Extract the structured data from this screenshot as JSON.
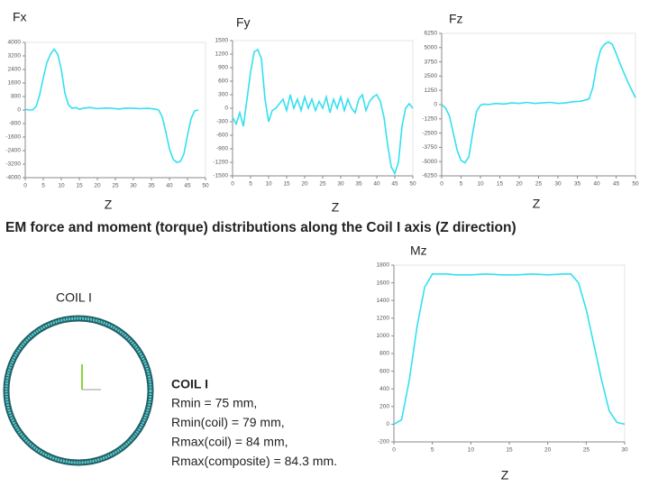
{
  "slide_title": "EM force and moment (torque) distributions along the Coil I axis (Z direction)",
  "coil": {
    "label": "COIL I"
  },
  "info": {
    "title": "COIL I",
    "lines": [
      "Rmin = 75 mm,",
      "Rmin(coil) = 79 mm,",
      "Rmax(coil) = 84 mm,",
      "Rmax(composite) = 84.3 mm."
    ]
  },
  "chart_data": [
    {
      "type": "line",
      "title": "Fx",
      "xlabel": "Z",
      "color": "#33e0f0",
      "x": [
        0,
        1,
        2,
        3,
        4,
        5,
        6,
        7,
        8,
        9,
        10,
        11,
        12,
        13,
        14,
        15,
        16,
        18,
        20,
        22,
        24,
        26,
        28,
        30,
        32,
        34,
        36,
        37,
        38,
        39,
        40,
        41,
        42,
        43,
        44,
        45,
        46,
        47,
        48
      ],
      "values": [
        50,
        0,
        0,
        200,
        900,
        1900,
        2800,
        3300,
        3600,
        3300,
        2400,
        1000,
        300,
        100,
        150,
        50,
        100,
        150,
        80,
        120,
        100,
        60,
        120,
        100,
        80,
        100,
        60,
        0,
        -400,
        -1300,
        -2300,
        -2900,
        -3100,
        -3050,
        -2600,
        -1500,
        -500,
        -50,
        0
      ],
      "xlim": [
        0,
        50
      ],
      "xticks": [
        0,
        5,
        10,
        15,
        20,
        25,
        30,
        35,
        40,
        45,
        50
      ],
      "ylim": [
        -4000,
        4000
      ],
      "yticks": [
        -4000,
        -3200,
        -2400,
        -1600,
        -800,
        0,
        800,
        1600,
        2400,
        3200,
        4000
      ]
    },
    {
      "type": "line",
      "title": "Fy",
      "xlabel": "Z",
      "color": "#33e0f0",
      "x": [
        0,
        1,
        2,
        3,
        4,
        5,
        6,
        7,
        8,
        9,
        10,
        11,
        12,
        13,
        14,
        15,
        16,
        17,
        18,
        19,
        20,
        21,
        22,
        23,
        24,
        25,
        26,
        27,
        28,
        29,
        30,
        31,
        32,
        33,
        34,
        35,
        36,
        37,
        38,
        39,
        40,
        41,
        42,
        43,
        44,
        45,
        46,
        47,
        48,
        49,
        50
      ],
      "values": [
        -200,
        -350,
        -100,
        -400,
        200,
        800,
        1250,
        1300,
        1100,
        200,
        -300,
        -50,
        0,
        100,
        200,
        -50,
        300,
        0,
        200,
        -50,
        250,
        0,
        200,
        -50,
        150,
        0,
        250,
        -100,
        200,
        0,
        250,
        -50,
        200,
        0,
        -100,
        200,
        300,
        -50,
        150,
        250,
        300,
        150,
        -200,
        -800,
        -1300,
        -1450,
        -1200,
        -400,
        0,
        100,
        0
      ],
      "xlim": [
        0,
        50
      ],
      "xticks": [
        0,
        5,
        10,
        15,
        20,
        25,
        30,
        35,
        40,
        45,
        50
      ],
      "ylim": [
        -1500,
        1500
      ],
      "yticks": [
        -1500,
        -1200,
        -900,
        -600,
        -300,
        0,
        300,
        600,
        900,
        1200,
        1500
      ]
    },
    {
      "type": "line",
      "title": "Fz",
      "xlabel": "Z",
      "color": "#33e0f0",
      "x": [
        0,
        1,
        2,
        3,
        4,
        5,
        6,
        7,
        8,
        9,
        10,
        11,
        12,
        14,
        16,
        18,
        20,
        22,
        24,
        26,
        28,
        30,
        32,
        34,
        36,
        38,
        39,
        40,
        41,
        42,
        43,
        44,
        45,
        46,
        47,
        48,
        49,
        50
      ],
      "values": [
        0,
        -300,
        -1000,
        -2500,
        -4000,
        -4900,
        -5100,
        -4600,
        -2500,
        -600,
        -50,
        50,
        0,
        100,
        50,
        150,
        100,
        200,
        100,
        150,
        200,
        100,
        150,
        250,
        300,
        500,
        1500,
        3500,
        4800,
        5300,
        5500,
        5300,
        4500,
        3600,
        2800,
        2000,
        1300,
        600
      ],
      "xlim": [
        0,
        50
      ],
      "xticks": [
        0,
        5,
        10,
        15,
        20,
        25,
        30,
        35,
        40,
        45,
        50
      ],
      "ylim": [
        -6250,
        6250
      ],
      "yticks": [
        -6250,
        -5000,
        -3750,
        -2500,
        -1250,
        0,
        1250,
        2500,
        3750,
        5000,
        6250
      ]
    },
    {
      "type": "line",
      "title": "Mz",
      "xlabel": "Z",
      "color": "#33e0f0",
      "x": [
        0,
        1,
        2,
        3,
        4,
        5,
        6,
        7,
        8,
        10,
        12,
        14,
        16,
        18,
        20,
        22,
        23,
        24,
        25,
        26,
        27,
        28,
        29,
        30
      ],
      "values": [
        0,
        50,
        500,
        1100,
        1550,
        1700,
        1700,
        1700,
        1690,
        1690,
        1700,
        1690,
        1690,
        1700,
        1690,
        1700,
        1700,
        1600,
        1300,
        900,
        500,
        150,
        20,
        0
      ],
      "xlim": [
        0,
        30
      ],
      "xticks": [
        0,
        5,
        10,
        15,
        20,
        25,
        30
      ],
      "ylim": [
        -200,
        1800
      ],
      "yticks": [
        -200,
        0,
        200,
        400,
        600,
        800,
        1000,
        1200,
        1400,
        1600,
        1800
      ]
    }
  ]
}
